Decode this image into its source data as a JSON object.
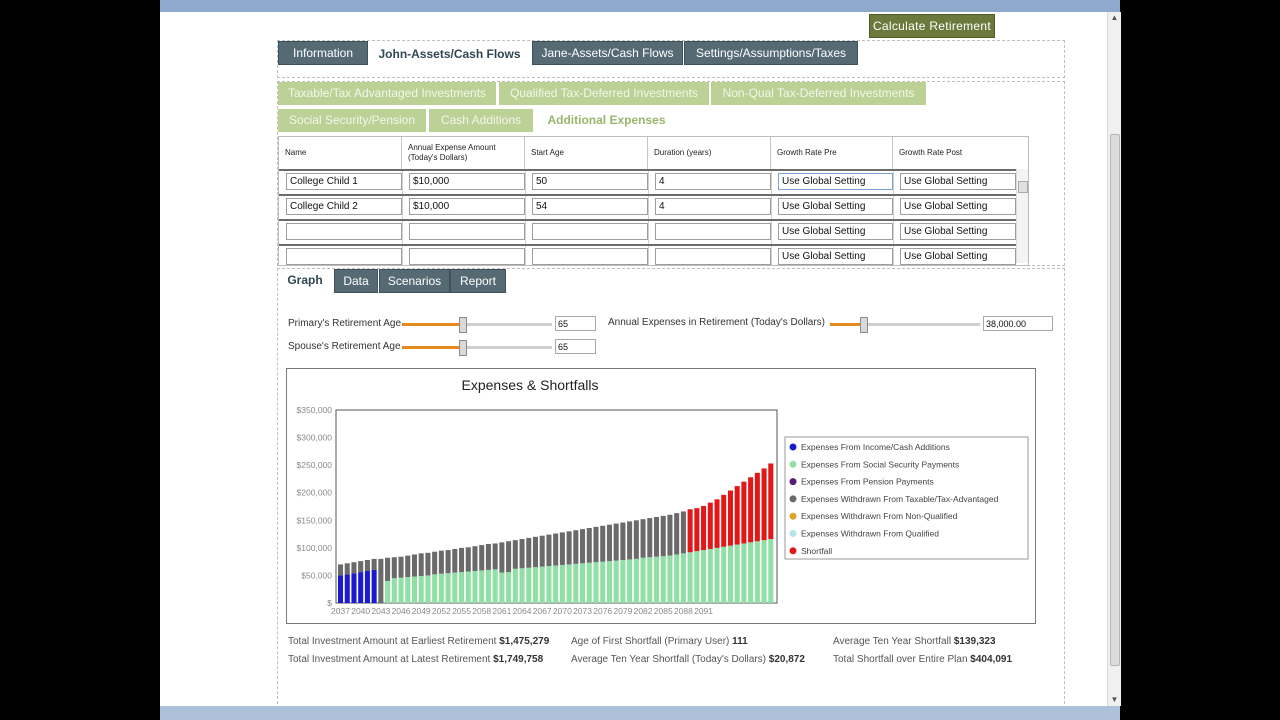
{
  "toolbar": {
    "calculate_label": "Calculate Retirement"
  },
  "main_tabs": [
    {
      "label": "Information",
      "active": false
    },
    {
      "label": "John-Assets/Cash Flows",
      "active": true
    },
    {
      "label": "Jane-Assets/Cash Flows",
      "active": false
    },
    {
      "label": "Settings/Assumptions/Taxes",
      "active": false
    }
  ],
  "sub_tabs_row1": [
    {
      "label": "Taxable/Tax Advantaged Investments",
      "active": false
    },
    {
      "label": "Qualified Tax-Deferred Investments",
      "active": false
    },
    {
      "label": "Non-Qual Tax-Deferred Investments",
      "active": false
    }
  ],
  "sub_tabs_row2": [
    {
      "label": "Social Security/Pension",
      "active": false
    },
    {
      "label": "Cash Additions",
      "active": false
    },
    {
      "label": "Additional Expenses",
      "active": true
    }
  ],
  "grid": {
    "headers": [
      "Name",
      "Annual Expense Amount (Today's Dollars)",
      "Start Age",
      "Duration (years)",
      "Growth Rate Pre",
      "Growth Rate Post"
    ],
    "rows": [
      [
        "College Child 1",
        "$10,000",
        "50",
        "4",
        "Use Global Setting",
        "Use Global Setting"
      ],
      [
        "College Child 2",
        "$10,000",
        "54",
        "4",
        "Use Global Setting",
        "Use Global Setting"
      ],
      [
        "",
        "",
        "",
        "",
        "Use Global Setting",
        "Use Global Setting"
      ],
      [
        "",
        "",
        "",
        "",
        "Use Global Setting",
        "Use Global Setting"
      ]
    ]
  },
  "result_tabs": [
    {
      "label": "Graph",
      "active": true
    },
    {
      "label": "Data",
      "active": false
    },
    {
      "label": "Scenarios",
      "active": false
    },
    {
      "label": "Report",
      "active": false
    }
  ],
  "controls": {
    "primary_age_label": "Primary's Retirement Age",
    "primary_age_value": "65",
    "primary_age_fraction": 0.4,
    "spouse_age_label": "Spouse's Retirement Age",
    "spouse_age_value": "65",
    "spouse_age_fraction": 0.4,
    "expenses_label": "Annual Expenses in Retirement (Today's Dollars)",
    "expenses_value": "38,000.00",
    "expenses_fraction": 0.22
  },
  "chart_data": {
    "type": "bar",
    "stacked": true,
    "title": "Expenses & Shortfalls",
    "ylim": [
      0,
      350000
    ],
    "y_ticks": [
      "$350,000",
      "$300,000",
      "$250,000",
      "$200,000",
      "$150,000",
      "$100,000",
      "$50,000",
      "$"
    ],
    "x_tick_labels": [
      "2037",
      "2040",
      "2043",
      "2046",
      "2049",
      "2052",
      "2055",
      "2058",
      "2061",
      "2064",
      "2067",
      "2070",
      "2073",
      "2076",
      "2079",
      "2082",
      "2085",
      "2088",
      "2091"
    ],
    "legend_position": "right",
    "series": [
      {
        "name": "Expenses From Income/Cash Additions",
        "color": "#1a1ad0",
        "values": [
          50000,
          52000,
          54000,
          56000,
          58000,
          60000,
          0,
          0,
          0,
          0,
          0,
          0,
          0,
          0,
          0,
          0,
          0,
          0,
          0,
          0,
          0,
          0,
          0,
          0,
          0,
          0,
          0,
          0,
          0,
          0,
          0,
          0,
          0,
          0,
          0,
          0,
          0,
          0,
          0,
          0,
          0,
          0,
          0,
          0,
          0,
          0,
          0,
          0,
          0,
          0,
          0,
          0,
          0,
          0,
          0,
          0,
          0,
          0,
          0,
          0,
          0,
          0,
          0,
          0,
          0
        ]
      },
      {
        "name": "Expenses From Social Security Payments",
        "color": "#90e0a6",
        "values": [
          0,
          0,
          0,
          0,
          0,
          0,
          0,
          40000,
          45000,
          46000,
          47000,
          48000,
          49000,
          50000,
          52000,
          53000,
          54000,
          55000,
          56000,
          57000,
          58000,
          59000,
          60000,
          61000,
          55000,
          56000,
          62000,
          63000,
          64000,
          65000,
          66000,
          67000,
          68000,
          69000,
          70000,
          71000,
          72000,
          73000,
          74000,
          75000,
          76000,
          77000,
          78000,
          79000,
          80000,
          82000,
          83000,
          84000,
          85000,
          86000,
          88000,
          90000,
          92000,
          94000,
          96000,
          98000,
          100000,
          102000,
          104000,
          106000,
          108000,
          110000,
          112000,
          114000,
          116000
        ]
      },
      {
        "name": "Expenses From Pension Payments",
        "color": "#5a1a78",
        "values": [
          0,
          0,
          0,
          0,
          0,
          0,
          0,
          0,
          0,
          0,
          0,
          0,
          0,
          0,
          0,
          0,
          0,
          0,
          0,
          0,
          0,
          0,
          0,
          0,
          0,
          0,
          0,
          0,
          0,
          0,
          0,
          0,
          0,
          0,
          0,
          0,
          0,
          0,
          0,
          0,
          0,
          0,
          0,
          0,
          0,
          0,
          0,
          0,
          0,
          0,
          0,
          0,
          0,
          0,
          0,
          0,
          0,
          0,
          0,
          0,
          0,
          0,
          0,
          0,
          0
        ]
      },
      {
        "name": "Expenses Withdrawn From Taxable/Tax-Advantaged",
        "color": "#6a6a6a",
        "values": [
          20000,
          20000,
          20000,
          20000,
          20000,
          20000,
          80000,
          42000,
          38000,
          38000,
          39000,
          40000,
          41000,
          41000,
          41000,
          42000,
          42000,
          43000,
          44000,
          44000,
          45000,
          46000,
          47000,
          47000,
          55000,
          56000,
          52000,
          53000,
          54000,
          55000,
          56000,
          57000,
          58000,
          59000,
          60000,
          61000,
          62000,
          63000,
          64000,
          65000,
          66000,
          67000,
          68000,
          69000,
          70000,
          70000,
          71000,
          72000,
          73000,
          74000,
          75000,
          76000,
          0,
          0,
          0,
          0,
          0,
          0,
          0,
          0,
          0,
          0,
          0,
          0,
          0
        ]
      },
      {
        "name": "Expenses Withdrawn From Non-Qualified",
        "color": "#e0a32a",
        "values": [
          0,
          0,
          0,
          0,
          0,
          0,
          0,
          0,
          0,
          0,
          0,
          0,
          0,
          0,
          0,
          0,
          0,
          0,
          0,
          0,
          0,
          0,
          0,
          0,
          0,
          0,
          0,
          0,
          0,
          0,
          0,
          0,
          0,
          0,
          0,
          0,
          0,
          0,
          0,
          0,
          0,
          0,
          0,
          0,
          0,
          0,
          0,
          0,
          0,
          0,
          0,
          0,
          0,
          0,
          0,
          0,
          0,
          0,
          0,
          0,
          0,
          0,
          0,
          0,
          0
        ]
      },
      {
        "name": "Expenses Withdrawn From Qualified",
        "color": "#b9e2ec",
        "values": [
          0,
          0,
          0,
          0,
          0,
          0,
          0,
          0,
          0,
          0,
          0,
          0,
          0,
          0,
          0,
          0,
          0,
          0,
          0,
          0,
          0,
          0,
          0,
          0,
          0,
          0,
          0,
          0,
          0,
          0,
          0,
          0,
          0,
          0,
          0,
          0,
          0,
          0,
          0,
          0,
          0,
          0,
          0,
          0,
          0,
          0,
          0,
          0,
          0,
          0,
          0,
          0,
          0,
          0,
          0,
          0,
          0,
          0,
          0,
          0,
          0,
          0,
          0,
          0,
          0
        ]
      },
      {
        "name": "Shortfall",
        "color": "#e01818",
        "values": [
          0,
          0,
          0,
          0,
          0,
          0,
          0,
          0,
          0,
          0,
          0,
          0,
          0,
          0,
          0,
          0,
          0,
          0,
          0,
          0,
          0,
          0,
          0,
          0,
          0,
          0,
          0,
          0,
          0,
          0,
          0,
          0,
          0,
          0,
          0,
          0,
          0,
          0,
          0,
          0,
          0,
          0,
          0,
          0,
          0,
          0,
          0,
          0,
          0,
          0,
          0,
          0,
          78000,
          78000,
          80000,
          84000,
          88000,
          94000,
          100000,
          106000,
          112000,
          118000,
          124000,
          130000,
          137000
        ]
      }
    ]
  },
  "summary": [
    [
      {
        "label": "Total Investment Amount at Earliest Retirement",
        "value": "$1,475,279"
      },
      {
        "label": "Age of First Shortfall (Primary User)",
        "value": "111"
      },
      {
        "label": "Average Ten Year Shortfall",
        "value": "$139,323"
      }
    ],
    [
      {
        "label": "Total Investment Amount at Latest Retirement",
        "value": "$1,749,758"
      },
      {
        "label": "Average Ten Year Shortfall (Today's Dollars)",
        "value": "$20,872"
      },
      {
        "label": "Total Shortfall over Entire Plan",
        "value": "$404,091"
      }
    ]
  ]
}
